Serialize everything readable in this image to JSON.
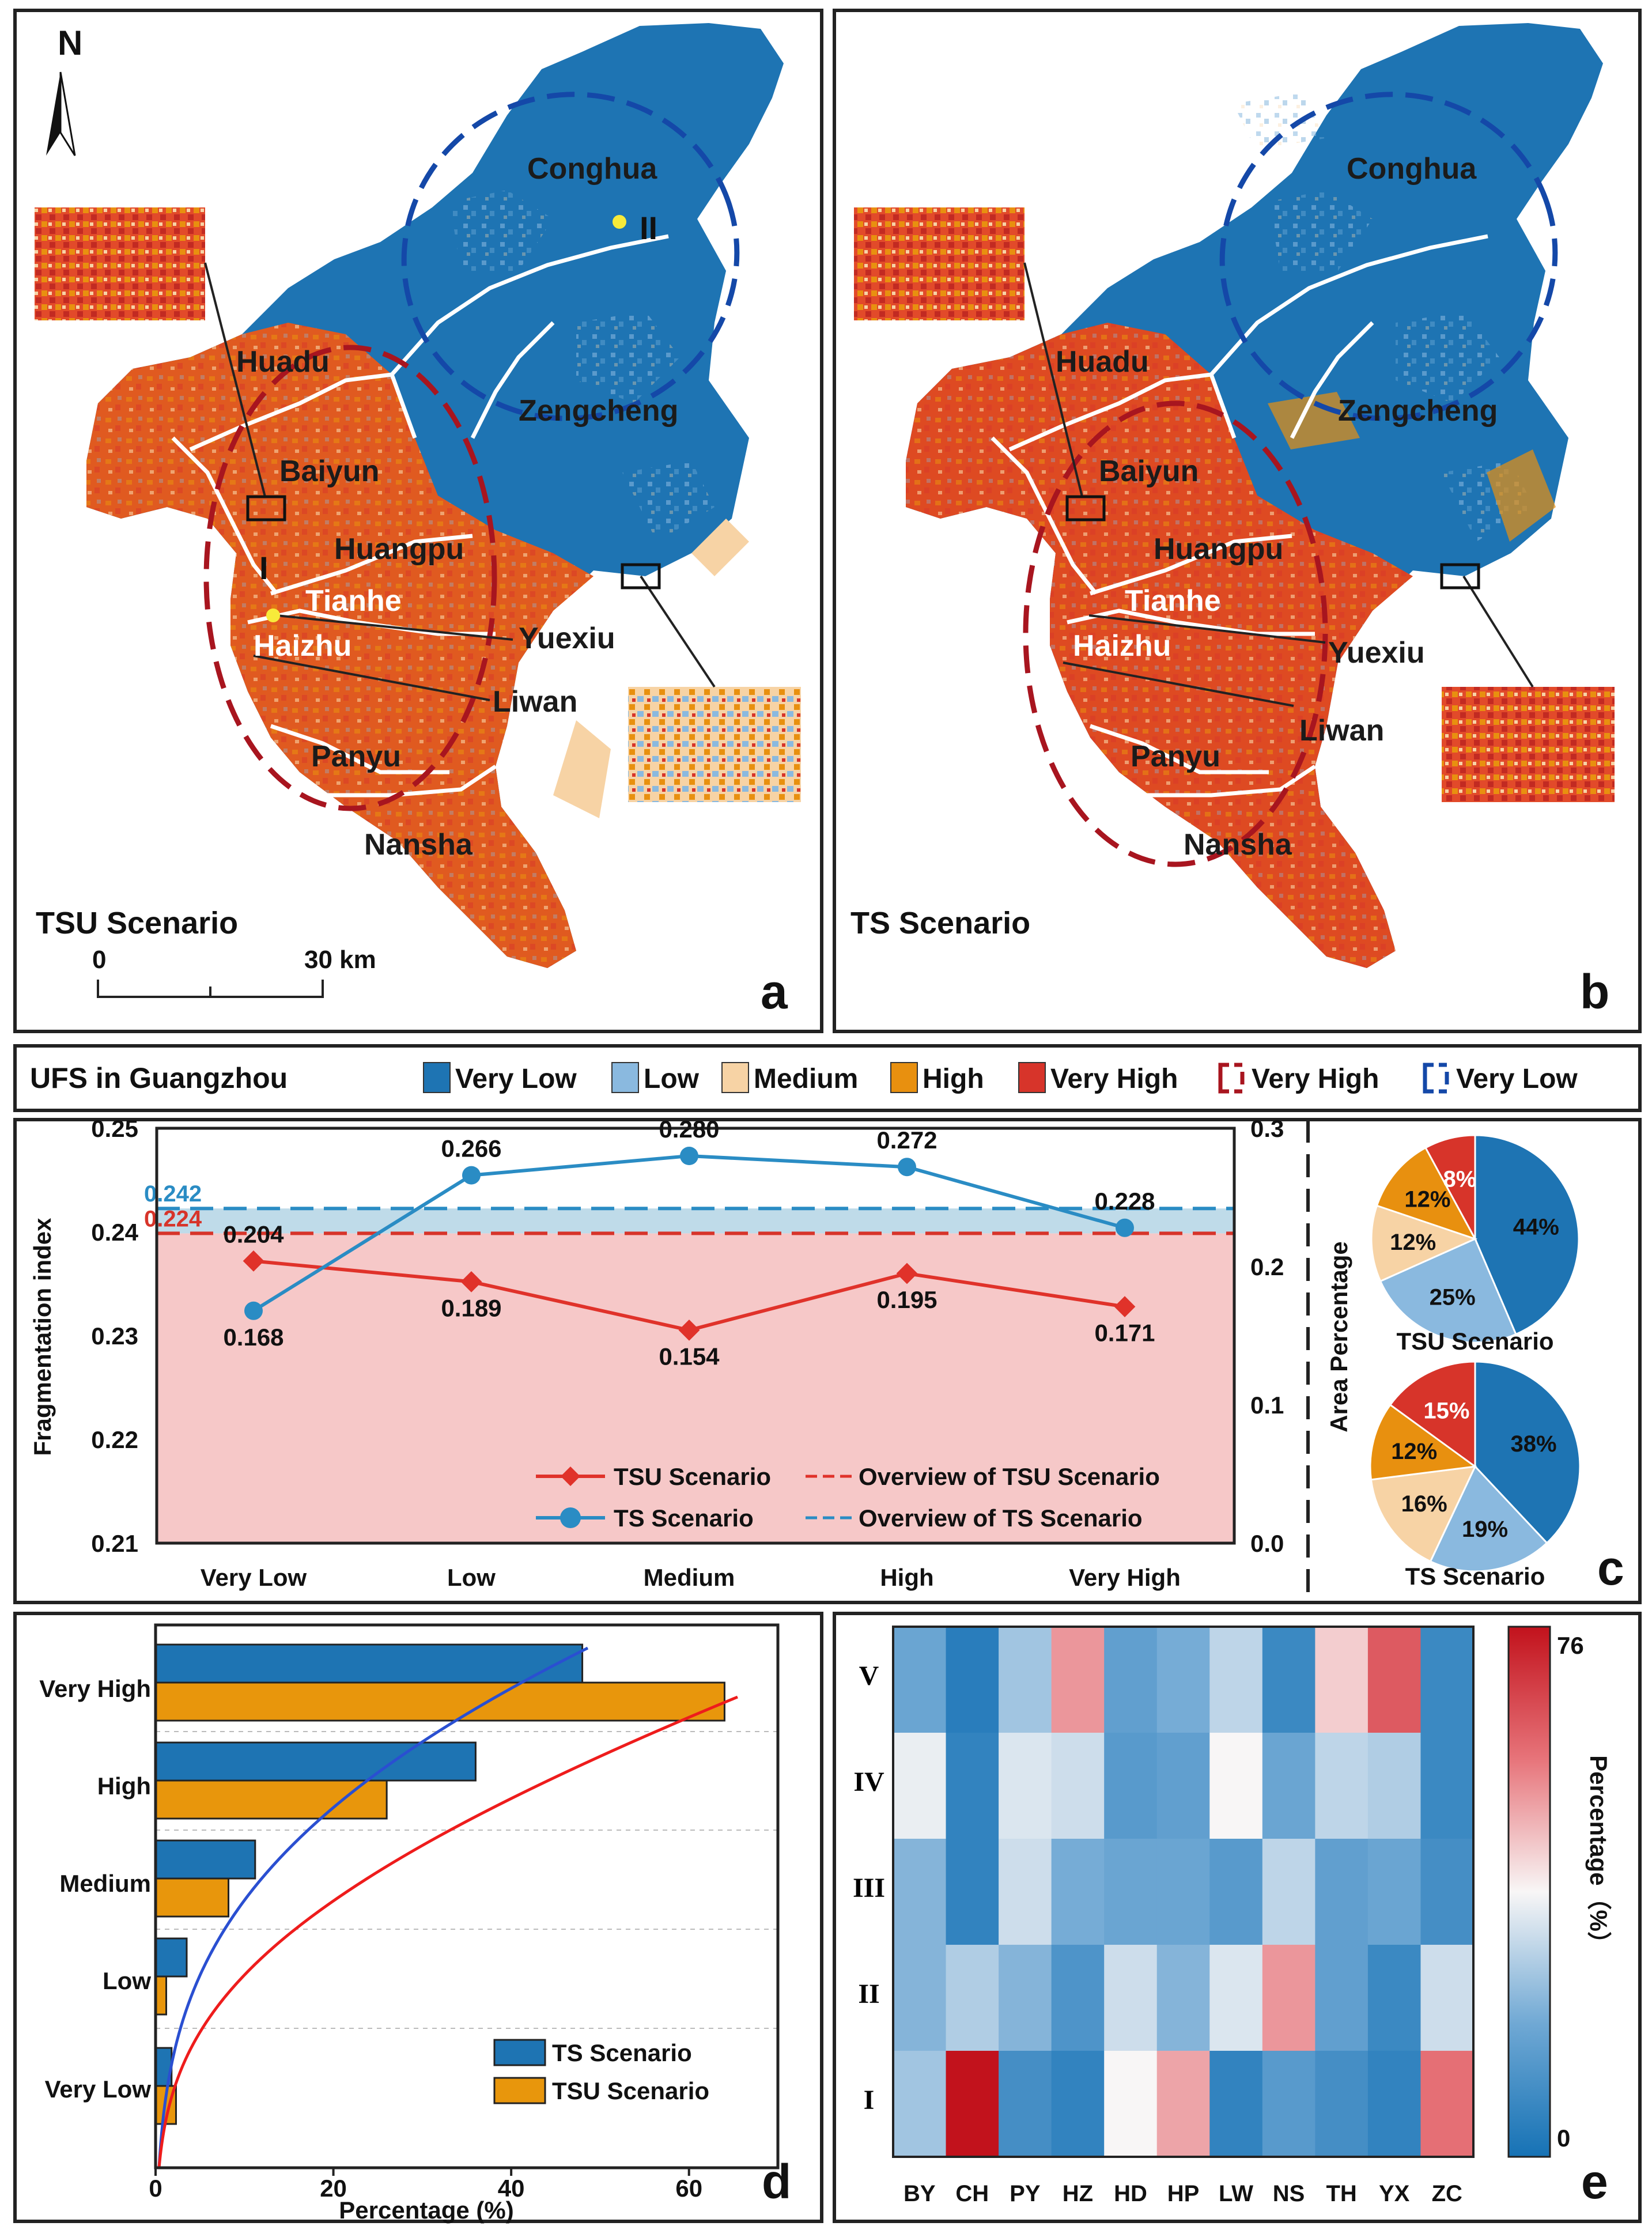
{
  "colors": {
    "very_low": "#1e74b3",
    "low": "#8ab9df",
    "medium": "#f7d3a5",
    "high": "#e8900f",
    "very_high": "#d7342a",
    "tsu": "#e0322a",
    "ts": "#2a8cc4",
    "band_blue": "#bfdbe9",
    "band_red": "#f6c8c8"
  },
  "maps": {
    "north": "N",
    "panel_a": {
      "letter": "a",
      "scenario": "TSU Scenario"
    },
    "panel_b": {
      "letter": "b",
      "scenario": "TS Scenario"
    },
    "scale": {
      "zero": "0",
      "label": "30 km"
    },
    "zone_labels": [
      "I",
      "II"
    ],
    "districts": [
      "Conghua",
      "Huadu",
      "Zengcheng",
      "Baiyun",
      "Huangpu",
      "Tianhe",
      "Haizhu",
      "Yuexiu",
      "Liwan",
      "Panyu",
      "Nansha"
    ]
  },
  "legend": {
    "title": "UFS in Guangzhou",
    "items": [
      "Very Low",
      "Low",
      "Medium",
      "High",
      "Very High"
    ],
    "zones": [
      "Very High",
      "Very Low"
    ]
  },
  "chart_data": [
    {
      "type": "line",
      "panel": "c",
      "ylabel_left": "Fragmentation index",
      "ylabel_right": "Area Percentage",
      "categories": [
        "Very Low",
        "Low",
        "Medium",
        "High",
        "Very High"
      ],
      "y_left_ticks": [
        "0.21",
        "0.22",
        "0.23",
        "0.24",
        "0.25"
      ],
      "y_right_ticks": [
        "0.0",
        "0.1",
        "0.2",
        "0.3"
      ],
      "ylim_right": [
        0,
        0.3
      ],
      "series": [
        {
          "name": "TSU Scenario",
          "values": [
            0.204,
            0.189,
            0.154,
            0.195,
            0.171
          ],
          "labels": [
            "0.204",
            "0.189",
            "0.154",
            "0.195",
            "0.171"
          ]
        },
        {
          "name": "TS Scenario",
          "values": [
            0.168,
            0.266,
            0.28,
            0.272,
            0.228
          ],
          "labels": [
            "0.168",
            "0.266",
            "0.280",
            "0.272",
            "0.228"
          ]
        }
      ],
      "overview": {
        "tsu": 0.224,
        "ts": 0.242,
        "tsu_label": "0.224",
        "ts_label": "0.242"
      },
      "legend": [
        "TSU Scenario",
        "TS Scenario",
        "Overview of TSU Scenario",
        "Overview of TS Scenario"
      ]
    },
    {
      "type": "pie",
      "panel": "c",
      "title": "TSU Scenario",
      "slices": [
        {
          "name": "Very Low",
          "value": 44,
          "label": "44%"
        },
        {
          "name": "Low",
          "value": 25,
          "label": "25%"
        },
        {
          "name": "Medium",
          "value": 12,
          "label": "12%"
        },
        {
          "name": "High",
          "value": 12,
          "label": "12%"
        },
        {
          "name": "Very High",
          "value": 8,
          "label": "8%"
        }
      ]
    },
    {
      "type": "pie",
      "panel": "c",
      "title": "TS Scenario",
      "slices": [
        {
          "name": "Very Low",
          "value": 38,
          "label": "38%"
        },
        {
          "name": "Low",
          "value": 19,
          "label": "19%"
        },
        {
          "name": "Medium",
          "value": 16,
          "label": "16%"
        },
        {
          "name": "High",
          "value": 12,
          "label": "12%"
        },
        {
          "name": "Very High",
          "value": 15,
          "label": "15%"
        }
      ]
    },
    {
      "type": "bar",
      "panel": "d",
      "xlabel": "Percentage (%)",
      "x_ticks": [
        "0",
        "20",
        "40",
        "60"
      ],
      "xlim": [
        0,
        70
      ],
      "categories": [
        "Very Low",
        "Low",
        "Medium",
        "High",
        "Very High"
      ],
      "series": [
        {
          "name": "TS Scenario",
          "values": [
            1.8,
            3.5,
            11.2,
            36.0,
            48.0
          ]
        },
        {
          "name": "TSU Scenario",
          "values": [
            2.3,
            1.2,
            8.2,
            26.0,
            64.0
          ]
        }
      ]
    },
    {
      "type": "heatmap",
      "panel": "e",
      "columns": [
        "BY",
        "CH",
        "PY",
        "HZ",
        "HD",
        "HP",
        "LW",
        "NS",
        "TH",
        "YX",
        "ZC"
      ],
      "rows": [
        "V",
        "IV",
        "III",
        "II",
        "I"
      ],
      "values": [
        [
          18,
          4,
          26,
          52,
          16,
          20,
          30,
          8,
          44,
          62,
          8
        ],
        [
          36,
          6,
          34,
          32,
          14,
          16,
          38,
          18,
          30,
          28,
          8
        ],
        [
          22,
          6,
          32,
          20,
          18,
          18,
          14,
          30,
          16,
          18,
          10
        ],
        [
          22,
          28,
          22,
          12,
          32,
          22,
          34,
          52,
          16,
          8,
          32
        ],
        [
          26,
          76,
          10,
          6,
          38,
          50,
          6,
          14,
          10,
          6,
          58
        ]
      ],
      "colorbar": {
        "label": "Percentage（%）",
        "max_label": "76",
        "min_label": "0"
      }
    }
  ]
}
